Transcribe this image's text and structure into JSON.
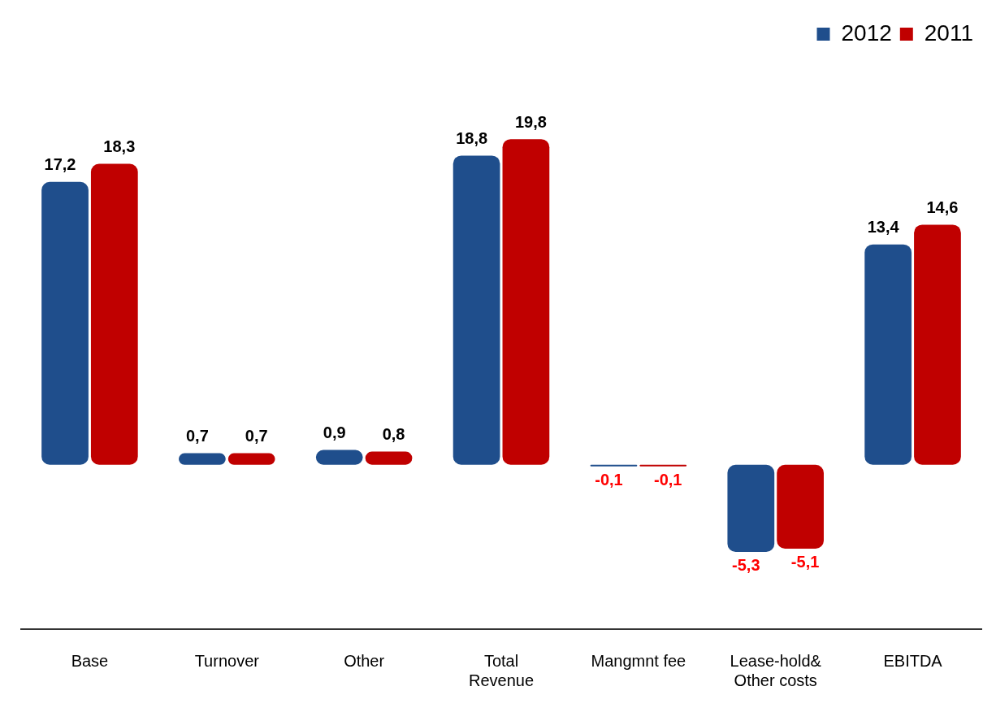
{
  "chart_data": {
    "type": "bar",
    "categories": [
      "Base",
      "Turnover",
      "Other",
      "Total Revenue",
      "Mangmnt fee",
      "Lease-hold& Other costs",
      "EBITDA"
    ],
    "series": [
      {
        "name": "2012",
        "color": "#1f4e8c",
        "values": [
          17.2,
          0.7,
          0.9,
          18.8,
          -0.1,
          -5.3,
          13.4
        ],
        "value_labels": [
          "17,2",
          "0,7",
          "0,9",
          "18,8",
          "-0,1",
          "-5,3",
          "13,4"
        ]
      },
      {
        "name": "2011",
        "color": "#c00000",
        "values": [
          18.3,
          0.7,
          0.8,
          19.8,
          -0.1,
          -5.1,
          14.6
        ],
        "value_labels": [
          "18,3",
          "0,7",
          "0,8",
          "19,8",
          "-0,1",
          "-5,1",
          "14,6"
        ]
      }
    ],
    "grid": false,
    "legend": "top right"
  }
}
